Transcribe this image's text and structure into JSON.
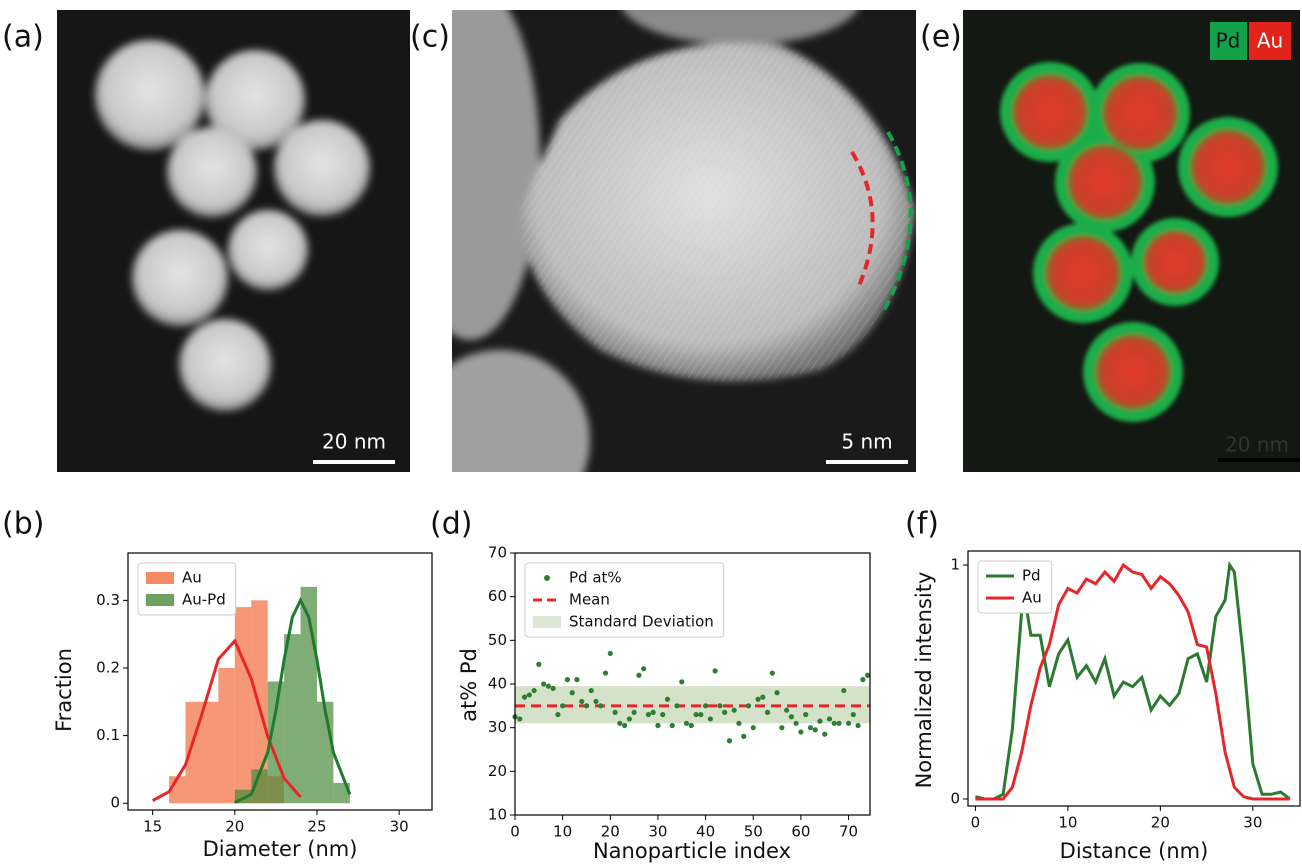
{
  "images": [
    {
      "label": "(a)",
      "scale_bar": "20 nm"
    },
    {
      "label": "(c)",
      "scale_bar": "5 nm"
    },
    {
      "label": "(e)",
      "scale_bar": "20 nm",
      "legend": [
        "Pd",
        "Au"
      ]
    }
  ],
  "chart_data": [
    {
      "type": "histogram",
      "panel_label": "(b)",
      "xlabel": "Diameter (nm)",
      "ylabel": "Fraction",
      "xlim": [
        13.5,
        32
      ],
      "ylim": [
        -0.01,
        0.37
      ],
      "xticks": [
        15,
        20,
        25,
        30
      ],
      "yticks": [
        0,
        0.1,
        0.2,
        0.3
      ],
      "legend": "upper left",
      "series": [
        {
          "name": "Au",
          "color": "#f26b3a",
          "bins": [
            16,
            17,
            18,
            19,
            20,
            21,
            22,
            23
          ],
          "values": [
            0.04,
            0.15,
            0.15,
            0.2,
            0.29,
            0.3,
            0.04
          ]
        },
        {
          "name": "Au-Pd",
          "color": "#4a8a3a",
          "bins": [
            20,
            21,
            22,
            23,
            24,
            25,
            26,
            27
          ],
          "values": [
            0.02,
            0.05,
            0.18,
            0.25,
            0.32,
            0.15,
            0.03
          ]
        }
      ],
      "fits": [
        {
          "color": "#e8262a",
          "x": [
            15,
            16,
            17,
            18,
            19,
            20,
            21,
            22,
            23,
            24
          ],
          "values": [
            0.004,
            0.017,
            0.057,
            0.132,
            0.213,
            0.24,
            0.184,
            0.099,
            0.037,
            0.009
          ]
        },
        {
          "color": "#1f7a2e",
          "x": [
            20,
            21,
            22,
            22.5,
            23,
            23.5,
            24,
            24.5,
            25,
            25.5,
            26,
            27
          ],
          "values": [
            0.001,
            0.013,
            0.075,
            0.137,
            0.212,
            0.275,
            0.3,
            0.275,
            0.212,
            0.137,
            0.075,
            0.013
          ]
        }
      ]
    },
    {
      "type": "scatter",
      "panel_label": "(d)",
      "xlabel": "Nanoparticle index",
      "ylabel": "at% Pd",
      "xlim": [
        0,
        74.5
      ],
      "ylim": [
        10,
        70
      ],
      "xticks": [
        0,
        10,
        20,
        30,
        40,
        50,
        60,
        70
      ],
      "yticks": [
        10,
        20,
        30,
        40,
        50,
        60,
        70
      ],
      "legend": "upper left",
      "series": [
        {
          "name": "Pd at%",
          "color": "#2e7d32",
          "x": [
            0,
            1,
            2,
            3,
            4,
            5,
            6,
            7,
            8,
            9,
            10,
            11,
            12,
            13,
            14,
            15,
            16,
            17,
            18,
            19,
            20,
            21,
            22,
            23,
            24,
            25,
            26,
            27,
            28,
            29,
            30,
            31,
            32,
            33,
            34,
            35,
            36,
            37,
            38,
            39,
            40,
            41,
            42,
            43,
            44,
            45,
            46,
            47,
            48,
            49,
            50,
            51,
            52,
            53,
            54,
            55,
            56,
            57,
            58,
            59,
            60,
            61,
            62,
            63,
            64,
            65,
            66,
            67,
            68,
            69,
            70,
            71,
            72,
            73,
            74
          ],
          "values": [
            32.5,
            32,
            37,
            37.5,
            38.5,
            44.5,
            40,
            39.5,
            39,
            33,
            35,
            41,
            38,
            41,
            36,
            35,
            38.5,
            36,
            35,
            42.5,
            47,
            33.5,
            31,
            30.5,
            32,
            33.5,
            42,
            43.5,
            33,
            33.5,
            30.5,
            33,
            36.5,
            30.5,
            35,
            40.5,
            31,
            30.5,
            33,
            33,
            35,
            32,
            43,
            35,
            33.5,
            27,
            34,
            31,
            28,
            35,
            30,
            36.5,
            37,
            33.5,
            42.5,
            38,
            30,
            34,
            32.5,
            31,
            29,
            33,
            30,
            29.5,
            31.5,
            28.5,
            32,
            31,
            31,
            38.5,
            31,
            33,
            30.5,
            41,
            42
          ]
        }
      ],
      "mean": {
        "name": "Mean",
        "value": 35,
        "color": "#e8262a"
      },
      "band": {
        "name": "Standard Deviation",
        "low": 31,
        "high": 39.5,
        "color": "#d3e2c9"
      }
    },
    {
      "type": "line",
      "panel_label": "(f)",
      "xlabel": "Distance (nm)",
      "ylabel": "Normalized intensity",
      "xlim": [
        -0.8,
        35.1
      ],
      "ylim": [
        -0.03,
        1.06
      ],
      "xticks": [
        0,
        10,
        20,
        30
      ],
      "yticks": [
        0,
        1
      ],
      "legend": "upper left",
      "series": [
        {
          "name": "Pd",
          "color": "#2b7a2f",
          "x": [
            0,
            1,
            2,
            3,
            4,
            5,
            5.5,
            6,
            7,
            8,
            9,
            10,
            11,
            12,
            13,
            14,
            15,
            16,
            17,
            18,
            19,
            20,
            21,
            22,
            23,
            24,
            25,
            26,
            27,
            27.5,
            28,
            29,
            30,
            31,
            32,
            33,
            34
          ],
          "values": [
            0.01,
            0,
            0,
            0.02,
            0.3,
            0.8,
            0.82,
            0.7,
            0.7,
            0.48,
            0.62,
            0.68,
            0.52,
            0.57,
            0.5,
            0.6,
            0.44,
            0.5,
            0.48,
            0.52,
            0.38,
            0.44,
            0.4,
            0.45,
            0.6,
            0.62,
            0.5,
            0.78,
            0.85,
            1.0,
            0.97,
            0.6,
            0.15,
            0.02,
            0.02,
            0.03,
            0
          ]
        },
        {
          "name": "Au",
          "color": "#e8262a",
          "x": [
            0,
            1,
            2,
            3,
            4,
            5,
            6,
            7,
            8,
            9,
            10,
            11,
            12,
            13,
            14,
            15,
            16,
            17,
            18,
            19,
            20,
            21,
            22,
            23,
            24,
            25,
            26,
            27,
            28,
            29,
            30,
            31,
            32,
            33,
            34
          ],
          "values": [
            0,
            0,
            0,
            0,
            0.05,
            0.2,
            0.4,
            0.56,
            0.66,
            0.83,
            0.9,
            0.88,
            0.94,
            0.92,
            0.97,
            0.93,
            1.0,
            0.97,
            0.96,
            0.9,
            0.95,
            0.92,
            0.87,
            0.8,
            0.66,
            0.65,
            0.45,
            0.2,
            0.05,
            0.01,
            0,
            0,
            0,
            0,
            0
          ]
        }
      ]
    }
  ]
}
